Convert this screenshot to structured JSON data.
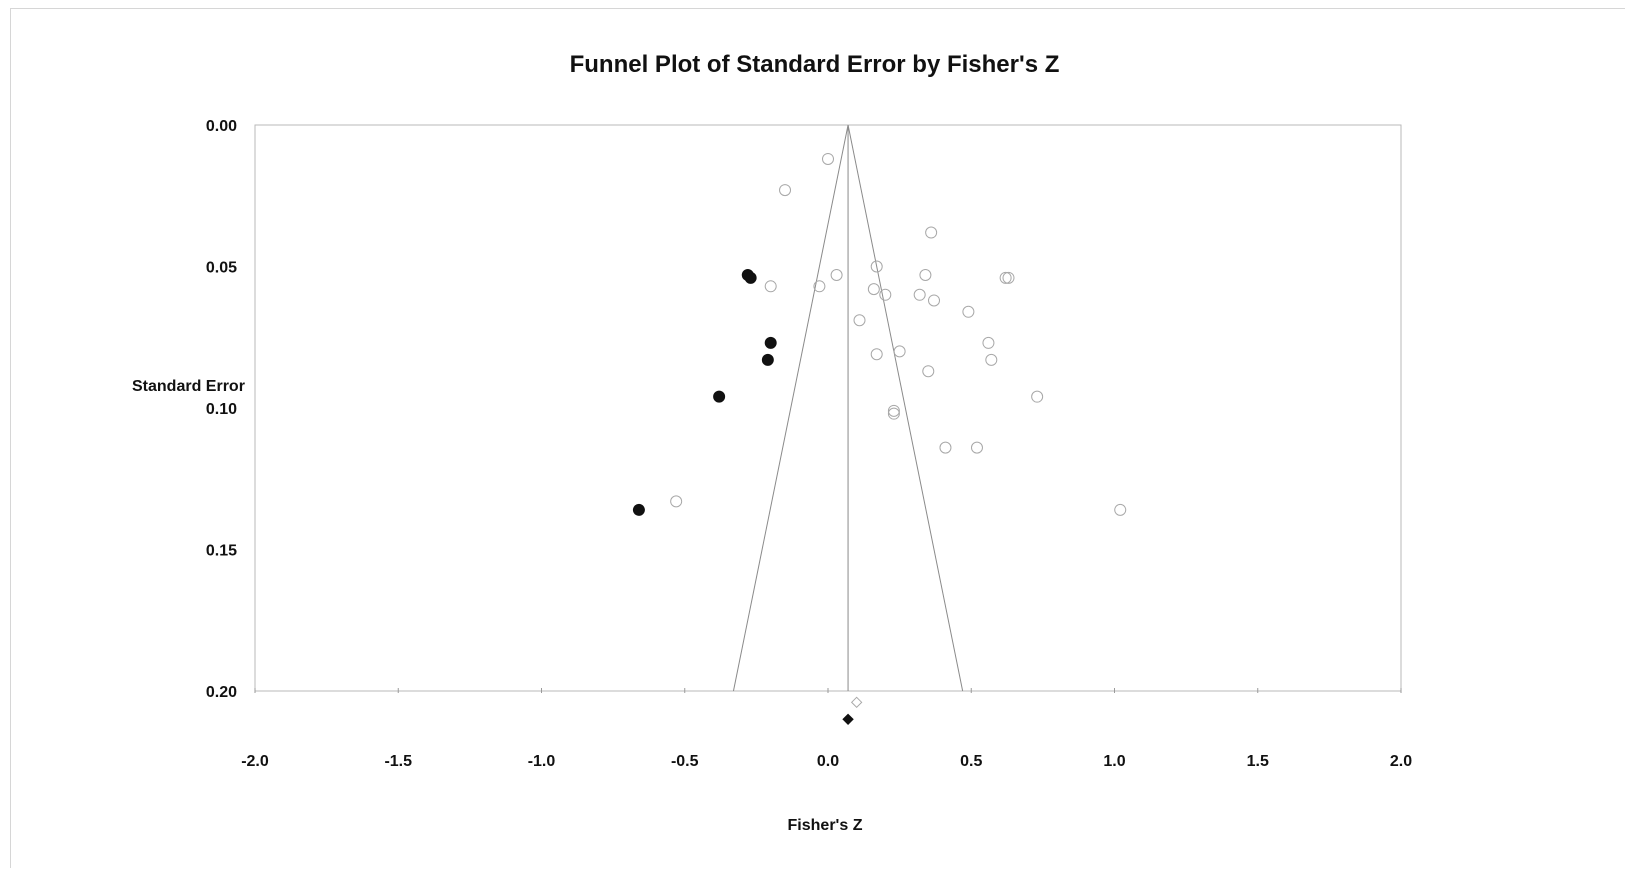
{
  "chart_data": {
    "type": "scatter",
    "title": "Funnel Plot of Standard Error by Fisher's Z",
    "xlabel": "Fisher's Z",
    "ylabel": "Standard Error",
    "xlim": [
      -2.0,
      2.0
    ],
    "ylim": [
      0.0,
      0.2
    ],
    "y_inverted": true,
    "x_ticks": [
      "-2.0",
      "-1.5",
      "-1.0",
      "-0.5",
      "0.0",
      "0.5",
      "1.0",
      "1.5",
      "2.0"
    ],
    "y_ticks": [
      "0.00",
      "0.05",
      "0.10",
      "0.15",
      "0.20"
    ],
    "grid": false,
    "legend": "none",
    "funnel": {
      "center": 0.07,
      "apex_se": 0.0,
      "left_at_max_se": -0.33,
      "right_at_max_se": 0.47,
      "max_se": 0.2
    },
    "series": [
      {
        "style": "open-circle",
        "points": [
          [
            0.0,
            0.012
          ],
          [
            -0.15,
            0.023
          ],
          [
            0.36,
            0.038
          ],
          [
            0.34,
            0.053
          ],
          [
            0.03,
            0.053
          ],
          [
            0.17,
            0.05
          ],
          [
            0.62,
            0.054
          ],
          [
            0.63,
            0.054
          ],
          [
            -0.2,
            0.057
          ],
          [
            -0.03,
            0.057
          ],
          [
            0.16,
            0.058
          ],
          [
            0.2,
            0.06
          ],
          [
            0.32,
            0.06
          ],
          [
            0.37,
            0.062
          ],
          [
            0.49,
            0.066
          ],
          [
            0.11,
            0.069
          ],
          [
            0.56,
            0.077
          ],
          [
            0.25,
            0.08
          ],
          [
            0.17,
            0.081
          ],
          [
            0.57,
            0.083
          ],
          [
            0.35,
            0.087
          ],
          [
            0.73,
            0.096
          ],
          [
            0.23,
            0.101
          ],
          [
            0.23,
            0.102
          ],
          [
            0.41,
            0.114
          ],
          [
            0.52,
            0.114
          ],
          [
            -0.53,
            0.133
          ],
          [
            1.02,
            0.136
          ]
        ]
      },
      {
        "style": "filled-circle",
        "points": [
          [
            -0.28,
            0.053
          ],
          [
            -0.27,
            0.054
          ],
          [
            -0.2,
            0.077
          ],
          [
            -0.21,
            0.083
          ],
          [
            -0.38,
            0.096
          ],
          [
            -0.66,
            0.136
          ]
        ]
      }
    ],
    "summary_diamonds": [
      {
        "style": "open-diamond",
        "x": 0.1,
        "y": 0.204
      },
      {
        "style": "filled-diamond",
        "x": 0.07,
        "y": 0.21
      }
    ]
  }
}
